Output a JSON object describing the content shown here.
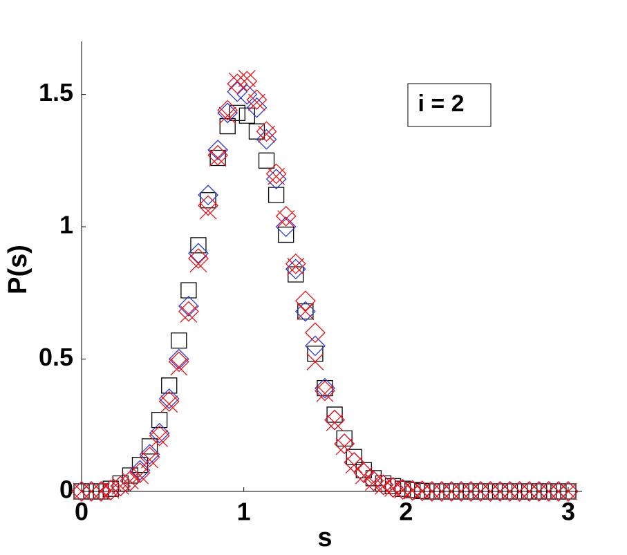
{
  "chart_data": {
    "type": "scatter",
    "xlabel": "s",
    "ylabel": "P(s)",
    "annotation": "i = 2",
    "xlim": [
      0,
      3
    ],
    "ylim": [
      0,
      1.7
    ],
    "xticks": [
      0,
      1,
      2,
      3
    ],
    "yticks": [
      0,
      0.5,
      1,
      1.5
    ],
    "grid": false,
    "x": [
      0,
      0.06,
      0.12,
      0.18,
      0.24,
      0.3,
      0.36,
      0.42,
      0.48,
      0.54,
      0.6,
      0.66,
      0.72,
      0.78,
      0.84,
      0.9,
      0.96,
      1.02,
      1.08,
      1.14,
      1.2,
      1.26,
      1.32,
      1.38,
      1.44,
      1.5,
      1.56,
      1.62,
      1.68,
      1.74,
      1.8,
      1.86,
      1.92,
      1.98,
      2.04,
      2.1,
      2.16,
      2.22,
      2.28,
      2.34,
      2.4,
      2.46,
      2.52,
      2.58,
      2.64,
      2.7,
      2.76,
      2.82,
      2.88,
      2.94,
      3.0
    ],
    "series": [
      {
        "color": "#000000",
        "marker": "square",
        "values": [
          0,
          0,
          0,
          0.01,
          0.03,
          0.06,
          0.1,
          0.17,
          0.27,
          0.4,
          0.57,
          0.76,
          0.93,
          1.1,
          1.26,
          1.38,
          1.43,
          1.42,
          1.36,
          1.25,
          1.12,
          0.97,
          0.82,
          0.68,
          0.52,
          0.39,
          0.29,
          0.2,
          0.13,
          0.08,
          0.05,
          0.03,
          0.02,
          0.01,
          0.005,
          0.002,
          0,
          0,
          0,
          0,
          0,
          0,
          0,
          0,
          0,
          0,
          0,
          0,
          0,
          0,
          0
        ]
      },
      {
        "color": "#2b3bd6",
        "marker": "diamond",
        "values": [
          0,
          0,
          0,
          0.005,
          0.02,
          0.04,
          0.08,
          0.14,
          0.22,
          0.35,
          0.5,
          0.7,
          0.9,
          1.12,
          1.29,
          1.43,
          1.51,
          1.5,
          1.45,
          1.33,
          1.18,
          1.0,
          0.84,
          0.68,
          0.55,
          0.39,
          0.27,
          0.18,
          0.11,
          0.07,
          0.04,
          0.025,
          0.015,
          0.008,
          0.004,
          0.002,
          0,
          0,
          0,
          0,
          0,
          0,
          0,
          0,
          0,
          0,
          0,
          0,
          0,
          0,
          0
        ]
      },
      {
        "color": "#e8131b",
        "marker": "diamond",
        "values": [
          0,
          0,
          0,
          0.005,
          0.02,
          0.04,
          0.07,
          0.13,
          0.21,
          0.34,
          0.49,
          0.68,
          0.88,
          1.08,
          1.27,
          1.44,
          1.54,
          1.55,
          1.48,
          1.36,
          1.2,
          1.04,
          0.86,
          0.72,
          0.6,
          0.38,
          0.27,
          0.18,
          0.11,
          0.07,
          0.04,
          0.025,
          0.015,
          0.008,
          0.004,
          0.002,
          0,
          0,
          0,
          0,
          0,
          0,
          0,
          0,
          0,
          0,
          0,
          0,
          0,
          0,
          0
        ]
      },
      {
        "color": "#e8131b",
        "marker": "x",
        "values": [
          0,
          0,
          0,
          0.005,
          0.02,
          0.04,
          0.06,
          0.12,
          0.2,
          0.33,
          0.47,
          0.67,
          0.86,
          1.06,
          1.26,
          1.42,
          1.55,
          1.56,
          1.47,
          1.35,
          1.19,
          1.03,
          0.85,
          0.68,
          0.49,
          0.37,
          0.26,
          0.17,
          0.1,
          0.06,
          0.035,
          0.02,
          0.012,
          0.006,
          0.003,
          0.001,
          0,
          0,
          0,
          0,
          0,
          0,
          0,
          0,
          0,
          0,
          0,
          0,
          0,
          0,
          0
        ]
      }
    ]
  }
}
